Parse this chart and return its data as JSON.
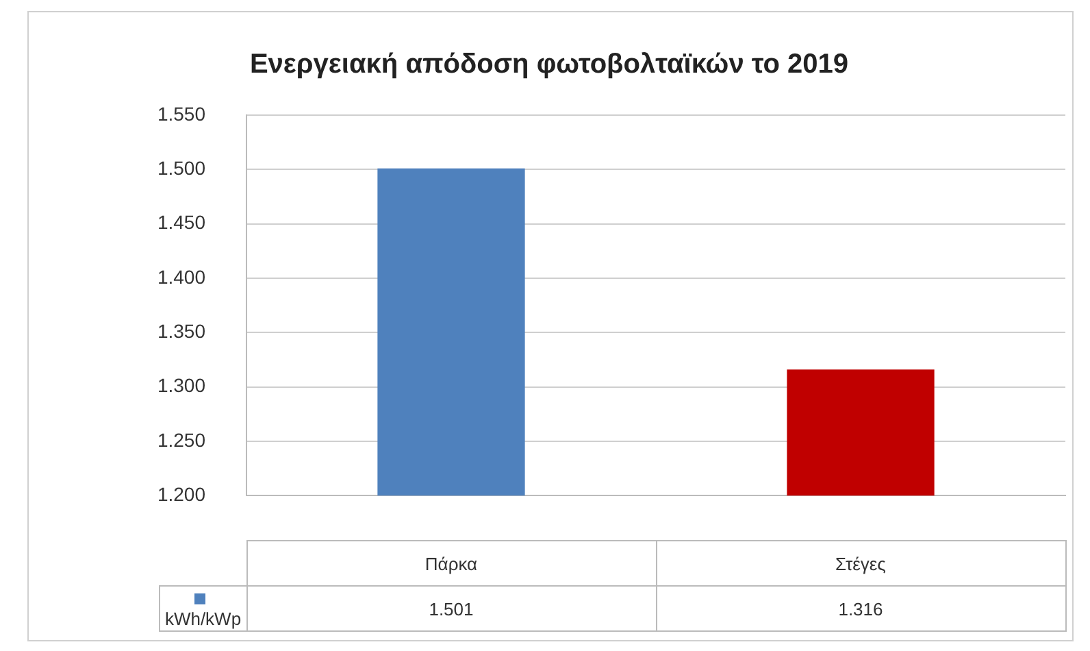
{
  "chart_data": {
    "type": "bar",
    "title": "Ενεργειακή απόδοση φωτοβολταϊκών το 2019",
    "categories": [
      "Πάρκα",
      "Στέγες"
    ],
    "series": [
      {
        "name": "kWh/kWp",
        "color": "#4f81bd",
        "colors": [
          "#4f81bd",
          "#c00000"
        ],
        "values": [
          1501,
          1316
        ],
        "value_labels": [
          "1.501",
          "1.316"
        ]
      }
    ],
    "ylim": [
      1200,
      1550
    ],
    "yticks": [
      {
        "value": 1200,
        "label": "1.200"
      },
      {
        "value": 1250,
        "label": "1.250"
      },
      {
        "value": 1300,
        "label": "1.300"
      },
      {
        "value": 1350,
        "label": "1.350"
      },
      {
        "value": 1400,
        "label": "1.400"
      },
      {
        "value": 1450,
        "label": "1.450"
      },
      {
        "value": 1500,
        "label": "1.500"
      },
      {
        "value": 1550,
        "label": "1.550"
      }
    ],
    "grid": "y",
    "legend": "bottom"
  }
}
